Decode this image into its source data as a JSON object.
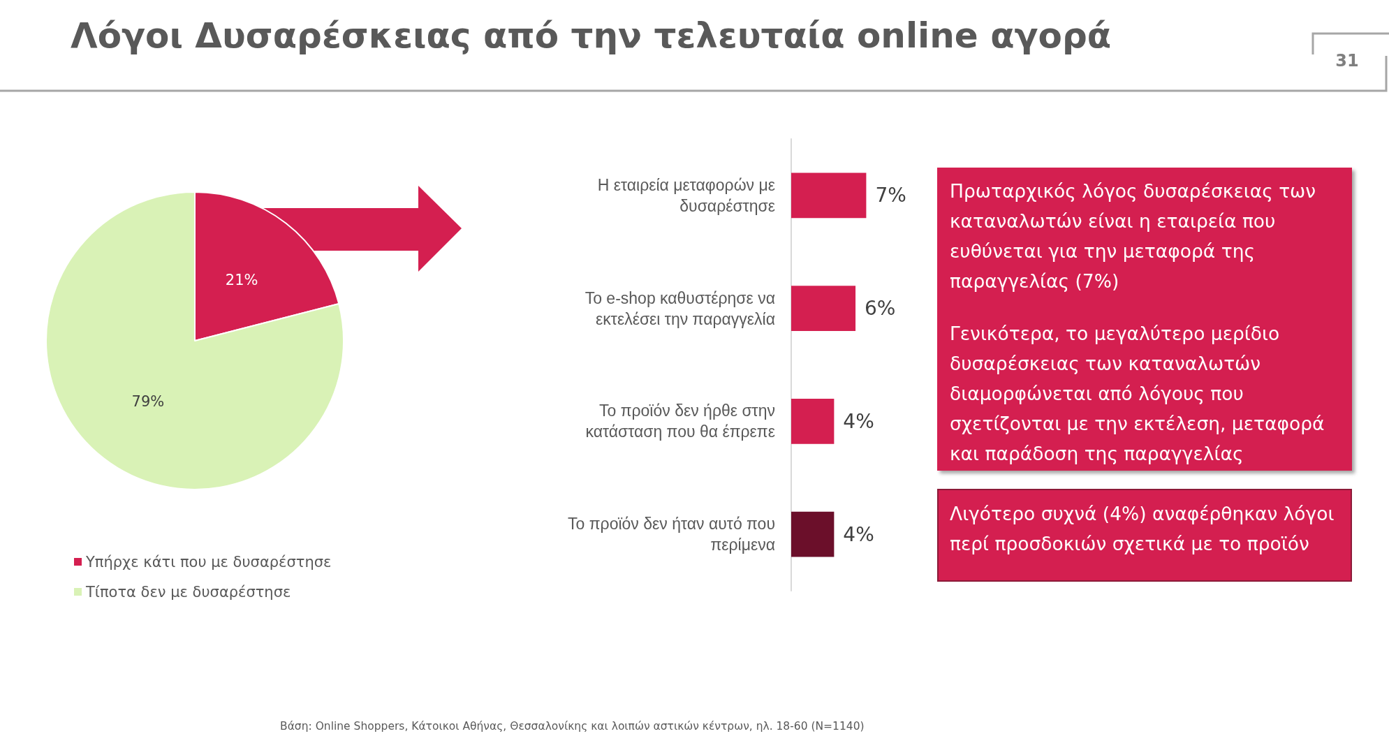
{
  "chart_data": [
    {
      "type": "pie",
      "title": "Λόγοι Δυσαρέσκειας από την τελευταία online αγορά",
      "categories": [
        "Υπήρχε κάτι που με δυσαρέστησε",
        "Τίποτα δεν με δυσαρέστησε"
      ],
      "values": [
        21,
        79
      ],
      "colors": [
        "#d41f50",
        "#d9f2b6"
      ],
      "value_labels": [
        "21%",
        "79%"
      ],
      "legend": "bottom left",
      "annotations": [
        "31",
        "Βάση: Online Shoppers, Κάτοικοι Αθήνας, Θεσσαλονίκης και λοιπών αστικών κέντρων, ηλ. 18-60 (N=1140)"
      ]
    },
    {
      "type": "bar",
      "orientation": "horizontal",
      "categories": [
        "Η εταιρεία μεταφορών με δυσαρέστησε",
        "Το e-shop καθυστέρησε να εκτελέσει την παραγγελία",
        "Το προϊόν δεν ήρθε στην κατάσταση που θα έπρεπε",
        "Το προϊόν δεν ήταν αυτό που περίμενα"
      ],
      "values": [
        7,
        6,
        4,
        4
      ],
      "colors": [
        "#d41f50",
        "#d41f50",
        "#d41f50",
        "#6b0f2a"
      ],
      "value_labels": [
        "7%",
        "6%",
        "4%",
        "4%"
      ]
    },
    {
      "type": "other",
      "annotations": [
        "Πρωταρχικός λόγος δυσαρέσκειας των καταναλωτών είναι η εταιρεία που ευθύνεται για την μεταφορά της παραγγελίας (7%)",
        "Γενικότερα, το μεγαλύτερο μερίδιο δυσαρέσκειας των καταναλωτών διαμορφώνεται από λόγους που σχετίζονται με την εκτέλεση, μεταφορά και παράδοση της παραγγελίας"
      ]
    },
    {
      "type": "other",
      "annotations": [
        "Λιγότερο συχνά (4%) αναφέρθηκαν λόγοι περί προσδοκιών σχετικά με το προϊόν"
      ]
    }
  ]
}
